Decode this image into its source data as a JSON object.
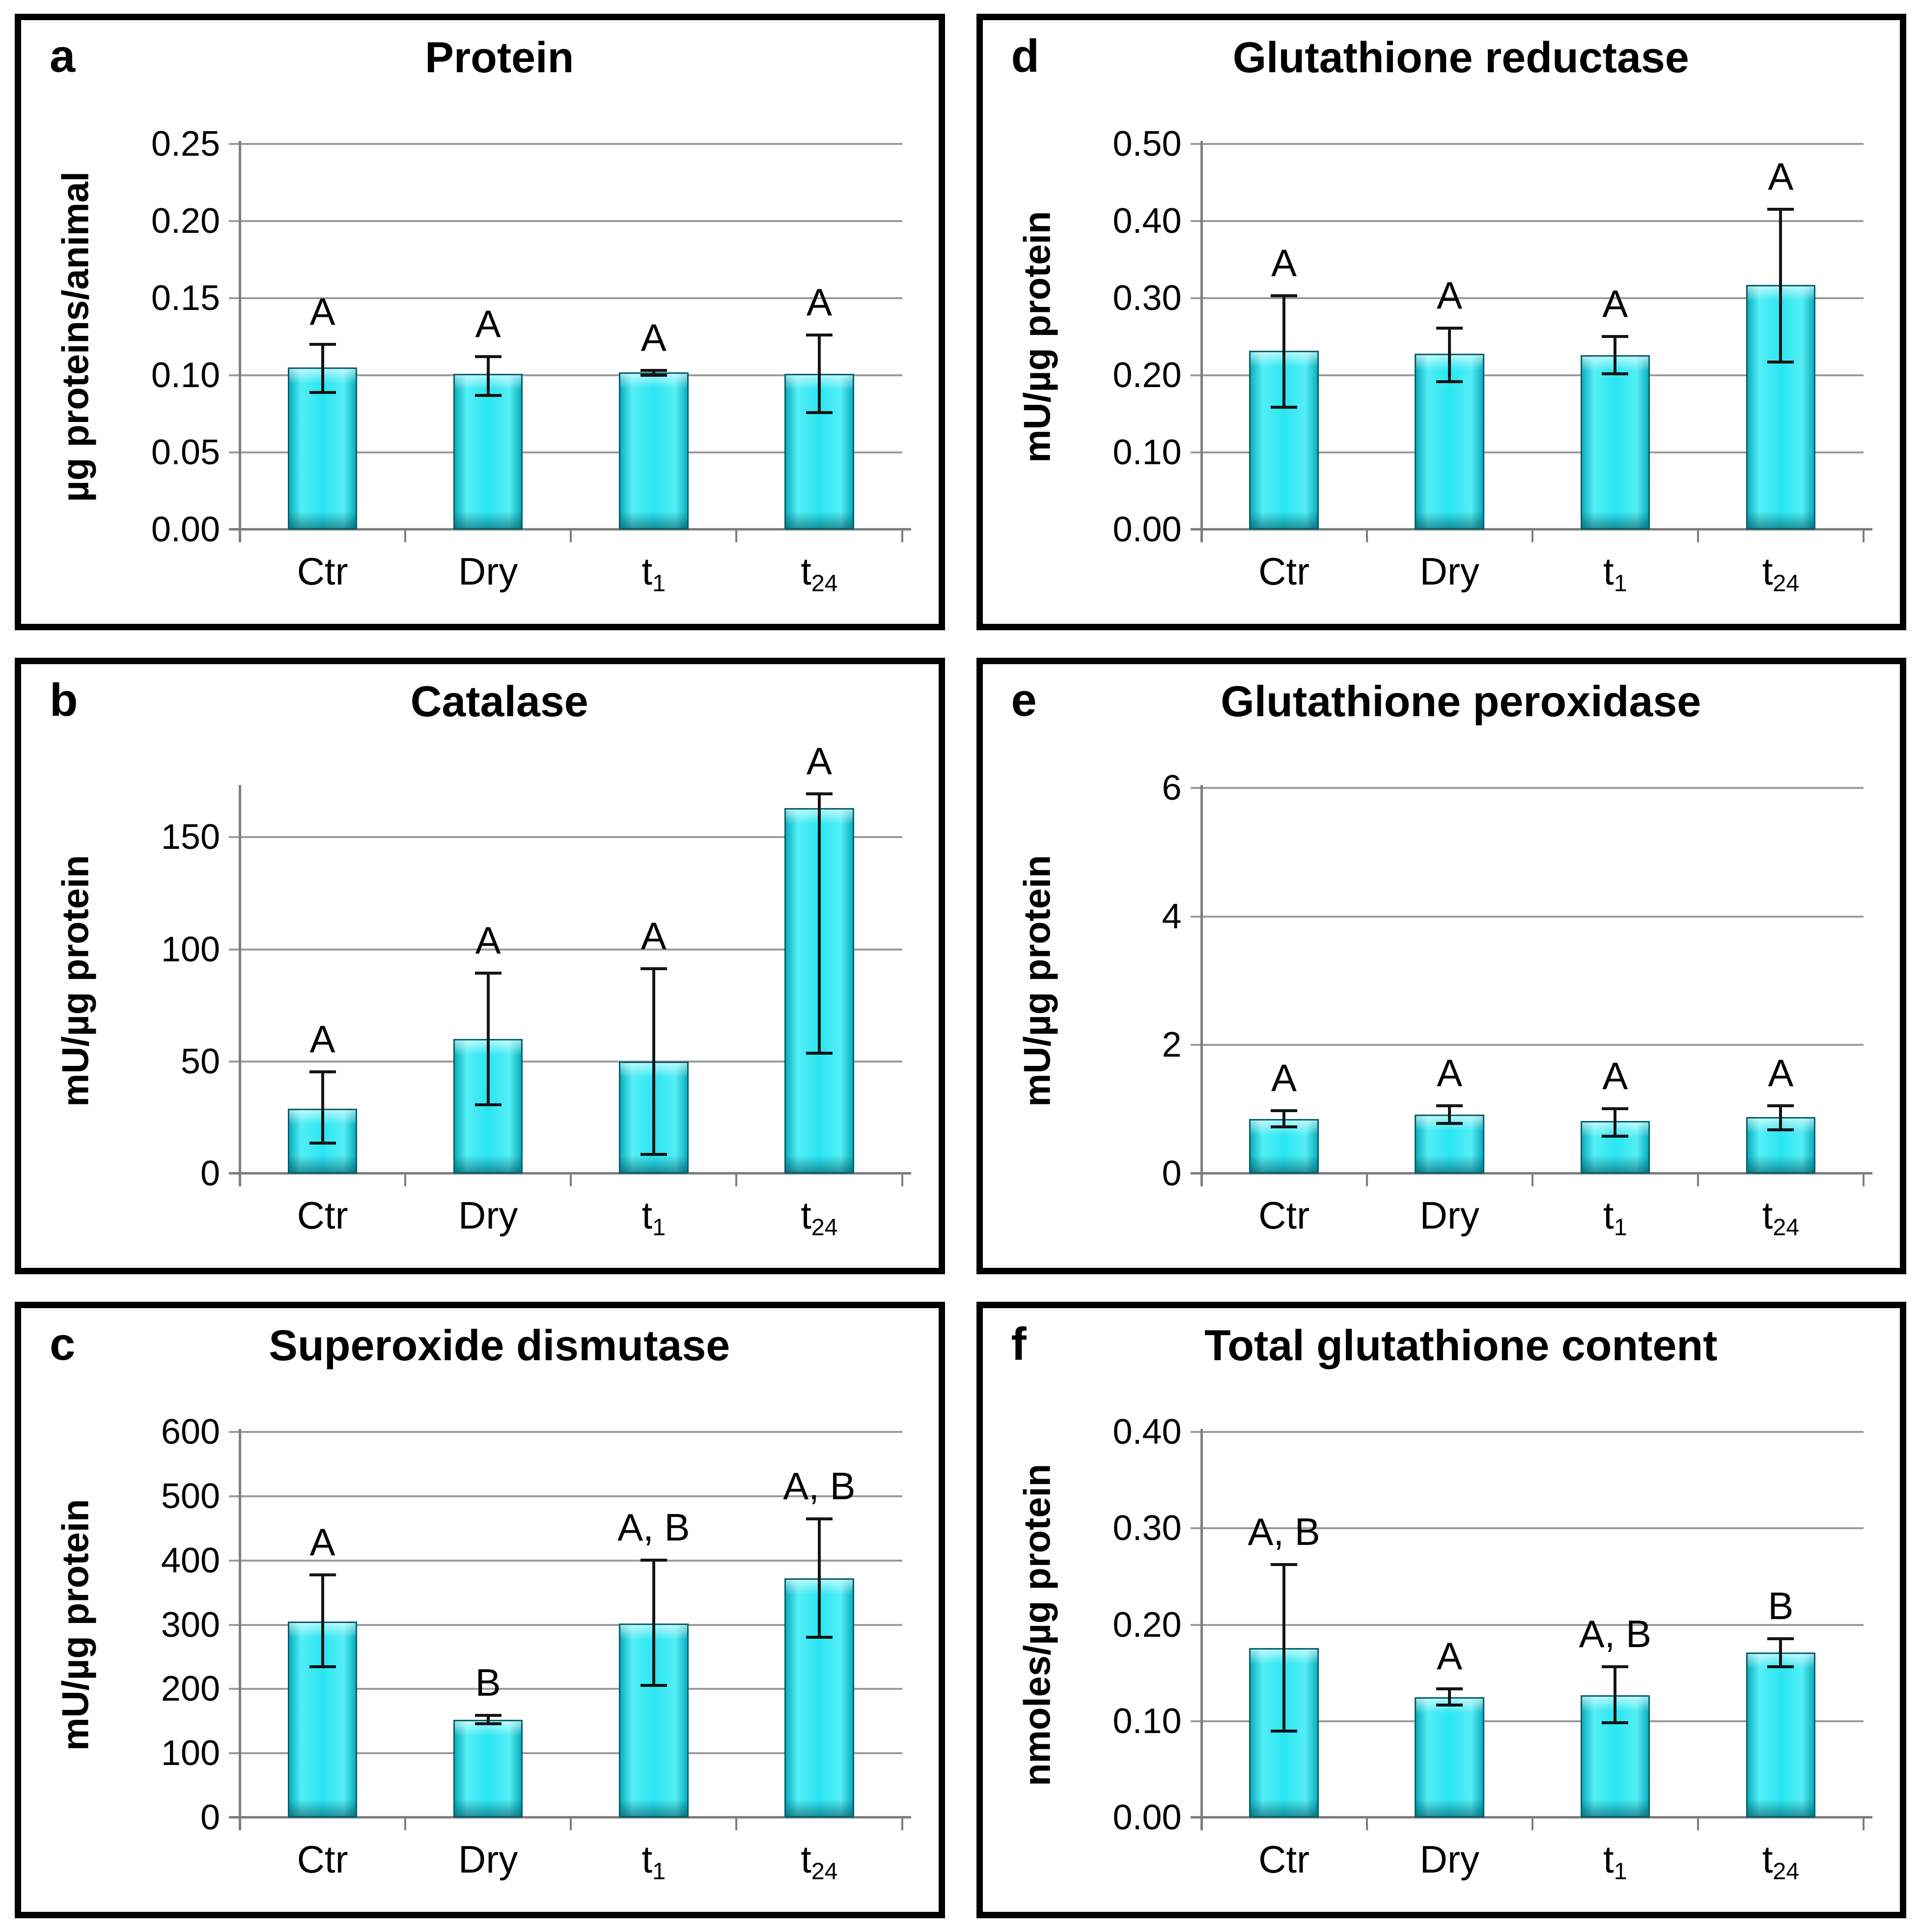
{
  "figure_background": "#ffffff",
  "panel_border_color": "#000000",
  "bar_fill_color": "#29e6f1",
  "bar_edge_color": "#045f6b",
  "gridline_color": "#9b9b9b",
  "axis_color": "#7e7e7e",
  "error_bar_color": "#141414",
  "chart_data": [
    {
      "type": "bar",
      "letter": "a",
      "title": "Protein",
      "ylabel": "µg proteins/animal",
      "grid": true,
      "legend": "none",
      "ylim": [
        0,
        0.25
      ],
      "yticks": [
        {
          "value": 0.0,
          "label": "0.00"
        },
        {
          "value": 0.05,
          "label": "0.05"
        },
        {
          "value": 0.1,
          "label": "0.10"
        },
        {
          "value": 0.15,
          "label": "0.15"
        },
        {
          "value": 0.2,
          "label": "0.20"
        },
        {
          "value": 0.25,
          "label": "0.25"
        }
      ],
      "categories": [
        {
          "label": "Ctr",
          "sub": ""
        },
        {
          "label": "Dry",
          "sub": ""
        },
        {
          "label": "t",
          "sub": "1"
        },
        {
          "label": "t",
          "sub": "24"
        }
      ],
      "values": [
        0.105,
        0.101,
        0.102,
        0.101
      ],
      "errors_low": [
        0.088,
        0.086,
        0.099,
        0.075
      ],
      "errors_high": [
        0.121,
        0.113,
        0.104,
        0.127
      ],
      "sig_labels": [
        "A",
        "A",
        "A",
        "A"
      ]
    },
    {
      "type": "bar",
      "letter": "b",
      "title": "Catalase",
      "ylabel": "mU/µg protein",
      "grid": true,
      "legend": "none",
      "ylim": [
        0,
        172
      ],
      "yticks": [
        {
          "value": 0,
          "label": "0"
        },
        {
          "value": 50,
          "label": "50"
        },
        {
          "value": 100,
          "label": "100"
        },
        {
          "value": 150,
          "label": "150"
        }
      ],
      "categories": [
        {
          "label": "Ctr",
          "sub": ""
        },
        {
          "label": "Dry",
          "sub": ""
        },
        {
          "label": "t",
          "sub": "1"
        },
        {
          "label": "t",
          "sub": "24"
        }
      ],
      "values": [
        29,
        60,
        50,
        163
      ],
      "errors_low": [
        13,
        30,
        8,
        53
      ],
      "errors_high": [
        46,
        90,
        92,
        170
      ],
      "sig_labels": [
        "A",
        "A",
        "A",
        "A"
      ]
    },
    {
      "type": "bar",
      "letter": "c",
      "title": "Superoxide dismutase",
      "ylabel": "mU/µg protein",
      "grid": true,
      "legend": "none",
      "ylim": [
        0,
        600
      ],
      "yticks": [
        {
          "value": 0,
          "label": "0"
        },
        {
          "value": 100,
          "label": "100"
        },
        {
          "value": 200,
          "label": "200"
        },
        {
          "value": 300,
          "label": "300"
        },
        {
          "value": 400,
          "label": "400"
        },
        {
          "value": 500,
          "label": "500"
        },
        {
          "value": 600,
          "label": "600"
        }
      ],
      "categories": [
        {
          "label": "Ctr",
          "sub": ""
        },
        {
          "label": "Dry",
          "sub": ""
        },
        {
          "label": "t",
          "sub": "1"
        },
        {
          "label": "t",
          "sub": "24"
        }
      ],
      "values": [
        305,
        152,
        302,
        372
      ],
      "errors_low": [
        232,
        144,
        203,
        278
      ],
      "errors_high": [
        380,
        161,
        403,
        467
      ],
      "sig_labels": [
        "A",
        "B",
        "A, B",
        "A, B"
      ]
    },
    {
      "type": "bar",
      "letter": "d",
      "title": "Glutathione reductase",
      "ylabel": "mU/µg protein",
      "grid": true,
      "legend": "none",
      "ylim": [
        0,
        0.5
      ],
      "yticks": [
        {
          "value": 0.0,
          "label": "0.00"
        },
        {
          "value": 0.1,
          "label": "0.10"
        },
        {
          "value": 0.2,
          "label": "0.20"
        },
        {
          "value": 0.3,
          "label": "0.30"
        },
        {
          "value": 0.4,
          "label": "0.40"
        },
        {
          "value": 0.5,
          "label": "0.50"
        }
      ],
      "categories": [
        {
          "label": "Ctr",
          "sub": ""
        },
        {
          "label": "Dry",
          "sub": ""
        },
        {
          "label": "t",
          "sub": "1"
        },
        {
          "label": "t",
          "sub": "24"
        }
      ],
      "values": [
        0.232,
        0.228,
        0.226,
        0.317
      ],
      "errors_low": [
        0.157,
        0.19,
        0.2,
        0.215
      ],
      "errors_high": [
        0.305,
        0.263,
        0.252,
        0.417
      ],
      "sig_labels": [
        "A",
        "A",
        "A",
        "A"
      ]
    },
    {
      "type": "bar",
      "letter": "e",
      "title": "Glutathione peroxidase",
      "ylabel": "mU/µg protein",
      "grid": true,
      "legend": "none",
      "ylim": [
        0,
        6
      ],
      "yticks": [
        {
          "value": 0,
          "label": "0"
        },
        {
          "value": 2,
          "label": "2"
        },
        {
          "value": 4,
          "label": "4"
        },
        {
          "value": 6,
          "label": "6"
        }
      ],
      "categories": [
        {
          "label": "Ctr",
          "sub": ""
        },
        {
          "label": "Dry",
          "sub": ""
        },
        {
          "label": "t",
          "sub": "1"
        },
        {
          "label": "t",
          "sub": "24"
        }
      ],
      "values": [
        0.85,
        0.92,
        0.82,
        0.88
      ],
      "errors_low": [
        0.7,
        0.76,
        0.56,
        0.66
      ],
      "errors_high": [
        1.0,
        1.08,
        1.03,
        1.08
      ],
      "sig_labels": [
        "A",
        "A",
        "A",
        "A"
      ]
    },
    {
      "type": "bar",
      "letter": "f",
      "title": "Total glutathione content",
      "ylabel": "nmoles/µg protein",
      "grid": true,
      "legend": "none",
      "ylim": [
        0,
        0.4
      ],
      "yticks": [
        {
          "value": 0.0,
          "label": "0.00"
        },
        {
          "value": 0.1,
          "label": "0.10"
        },
        {
          "value": 0.2,
          "label": "0.20"
        },
        {
          "value": 0.3,
          "label": "0.30"
        },
        {
          "value": 0.4,
          "label": "0.40"
        }
      ],
      "categories": [
        {
          "label": "Ctr",
          "sub": ""
        },
        {
          "label": "Dry",
          "sub": ""
        },
        {
          "label": "t",
          "sub": "1"
        },
        {
          "label": "t",
          "sub": "24"
        }
      ],
      "values": [
        0.176,
        0.125,
        0.127,
        0.171
      ],
      "errors_low": [
        0.088,
        0.115,
        0.097,
        0.155
      ],
      "errors_high": [
        0.264,
        0.135,
        0.158,
        0.187
      ],
      "sig_labels": [
        "A, B",
        "A",
        "A, B",
        "B"
      ]
    }
  ]
}
